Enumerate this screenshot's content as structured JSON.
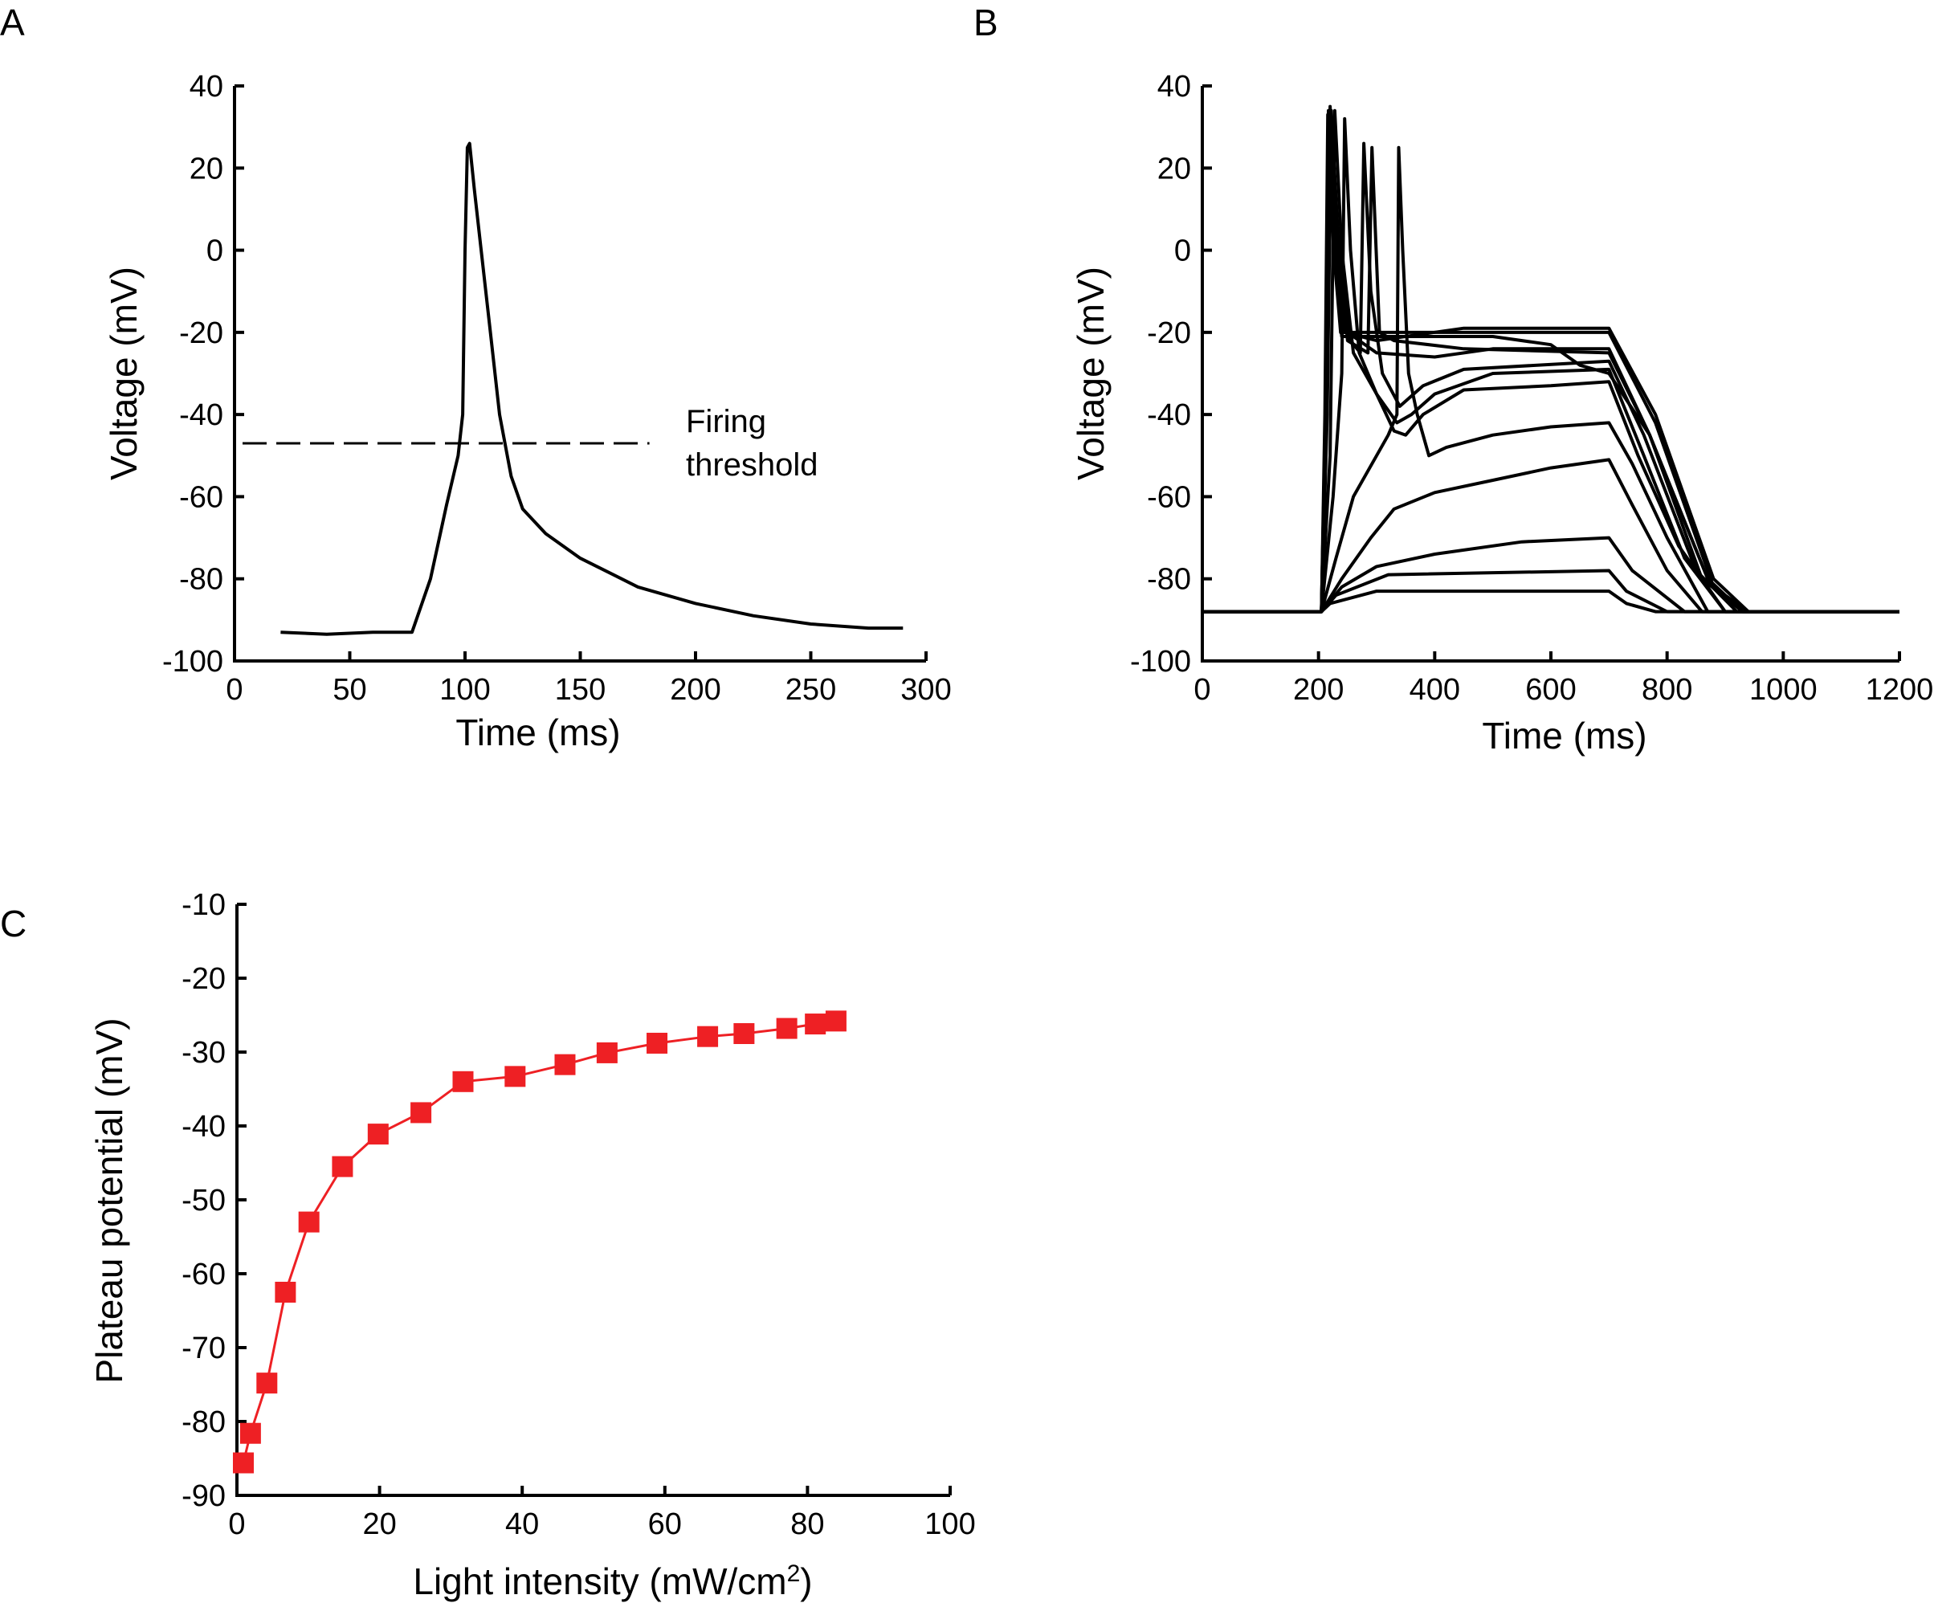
{
  "chart_data": [
    {
      "panel_label": "A",
      "type": "line",
      "xlabel": "Time (ms)",
      "ylabel": "Voltage (mV)",
      "xlim": [
        0,
        300
      ],
      "ylim": [
        -100,
        40
      ],
      "xticks": [
        0,
        50,
        100,
        150,
        200,
        250,
        300
      ],
      "yticks": [
        40,
        20,
        0,
        -20,
        -40,
        -60,
        -80,
        -100
      ],
      "grid": false,
      "annotation": {
        "text_lines": [
          "Firing",
          "threshold"
        ],
        "threshold_mV": -47,
        "line_x_range": [
          0,
          180
        ],
        "style": "dashed"
      },
      "series": [
        {
          "color": "#000000",
          "points": [
            [
              20,
              -93
            ],
            [
              40,
              -93.5
            ],
            [
              60,
              -93
            ],
            [
              77,
              -93
            ],
            [
              85,
              -80
            ],
            [
              92,
              -62
            ],
            [
              97,
              -50
            ],
            [
              99,
              -40
            ],
            [
              100,
              0
            ],
            [
              101,
              25
            ],
            [
              102,
              26
            ],
            [
              104,
              15
            ],
            [
              107,
              0
            ],
            [
              111,
              -20
            ],
            [
              115,
              -40
            ],
            [
              120,
              -55
            ],
            [
              125,
              -63
            ],
            [
              135,
              -69
            ],
            [
              150,
              -75
            ],
            [
              175,
              -82
            ],
            [
              200,
              -86
            ],
            [
              225,
              -89
            ],
            [
              250,
              -91
            ],
            [
              275,
              -92
            ],
            [
              290,
              -92
            ]
          ]
        }
      ]
    },
    {
      "panel_label": "B",
      "type": "line",
      "xlabel": "Time (ms)",
      "ylabel": "Voltage (mV)",
      "xlim": [
        0,
        1200
      ],
      "ylim": [
        -100,
        40
      ],
      "xticks": [
        0,
        200,
        400,
        600,
        800,
        1000,
        1200
      ],
      "yticks": [
        40,
        20,
        0,
        -20,
        -40,
        -60,
        -80,
        -100
      ],
      "grid": false,
      "series": [
        {
          "color": "#000000",
          "points": [
            [
              0,
              -88
            ],
            [
              205,
              -88
            ],
            [
              220,
              -86
            ],
            [
              300,
              -83
            ],
            [
              700,
              -83
            ],
            [
              730,
              -86
            ],
            [
              780,
              -88
            ],
            [
              1200,
              -88
            ]
          ]
        },
        {
          "color": "#000000",
          "points": [
            [
              0,
              -88
            ],
            [
              205,
              -88
            ],
            [
              230,
              -84
            ],
            [
              320,
              -79
            ],
            [
              700,
              -78
            ],
            [
              730,
              -83
            ],
            [
              800,
              -88
            ],
            [
              1200,
              -88
            ]
          ]
        },
        {
          "color": "#000000",
          "points": [
            [
              0,
              -88
            ],
            [
              205,
              -88
            ],
            [
              240,
              -82
            ],
            [
              300,
              -77
            ],
            [
              400,
              -74
            ],
            [
              550,
              -71
            ],
            [
              700,
              -70
            ],
            [
              740,
              -78
            ],
            [
              830,
              -88
            ],
            [
              1200,
              -88
            ]
          ]
        },
        {
          "color": "#000000",
          "points": [
            [
              0,
              -88
            ],
            [
              205,
              -88
            ],
            [
              240,
              -80
            ],
            [
              290,
              -70
            ],
            [
              330,
              -63
            ],
            [
              400,
              -59
            ],
            [
              500,
              -56
            ],
            [
              600,
              -53
            ],
            [
              700,
              -51
            ],
            [
              740,
              -62
            ],
            [
              800,
              -78
            ],
            [
              860,
              -88
            ],
            [
              1200,
              -88
            ]
          ]
        },
        {
          "color": "#000000",
          "points": [
            [
              0,
              -88
            ],
            [
              205,
              -88
            ],
            [
              230,
              -75
            ],
            [
              260,
              -60
            ],
            [
              300,
              -50
            ],
            [
              320,
              -45
            ],
            [
              335,
              -40
            ],
            [
              338,
              25
            ],
            [
              345,
              0
            ],
            [
              355,
              -30
            ],
            [
              370,
              -40
            ],
            [
              390,
              -50
            ],
            [
              420,
              -48
            ],
            [
              500,
              -45
            ],
            [
              600,
              -43
            ],
            [
              700,
              -42
            ],
            [
              740,
              -52
            ],
            [
              800,
              -70
            ],
            [
              870,
              -88
            ],
            [
              1200,
              -88
            ]
          ]
        },
        {
          "color": "#000000",
          "points": [
            [
              0,
              -88
            ],
            [
              205,
              -88
            ],
            [
              225,
              -60
            ],
            [
              240,
              -30
            ],
            [
              245,
              32
            ],
            [
              255,
              0
            ],
            [
              270,
              -25
            ],
            [
              300,
              -35
            ],
            [
              330,
              -44
            ],
            [
              350,
              -45
            ],
            [
              380,
              -40
            ],
            [
              450,
              -34
            ],
            [
              600,
              -33
            ],
            [
              700,
              -32
            ],
            [
              750,
              -50
            ],
            [
              820,
              -72
            ],
            [
              900,
              -88
            ],
            [
              1200,
              -88
            ]
          ]
        },
        {
          "color": "#000000",
          "points": [
            [
              0,
              -88
            ],
            [
              205,
              -88
            ],
            [
              220,
              -50
            ],
            [
              228,
              34
            ],
            [
              240,
              0
            ],
            [
              260,
              -25
            ],
            [
              300,
              -35
            ],
            [
              335,
              -42
            ],
            [
              360,
              -40
            ],
            [
              400,
              -35
            ],
            [
              500,
              -30
            ],
            [
              700,
              -29
            ],
            [
              760,
              -50
            ],
            [
              830,
              -75
            ],
            [
              900,
              -88
            ],
            [
              1200,
              -88
            ]
          ]
        },
        {
          "color": "#000000",
          "points": [
            [
              0,
              -88
            ],
            [
              205,
              -88
            ],
            [
              215,
              -40
            ],
            [
              222,
              34
            ],
            [
              235,
              0
            ],
            [
              255,
              -22
            ],
            [
              272,
              -25
            ],
            [
              278,
              26
            ],
            [
              290,
              -10
            ],
            [
              310,
              -30
            ],
            [
              340,
              -38
            ],
            [
              380,
              -33
            ],
            [
              450,
              -29
            ],
            [
              700,
              -27
            ],
            [
              760,
              -45
            ],
            [
              850,
              -78
            ],
            [
              920,
              -88
            ],
            [
              1200,
              -88
            ]
          ]
        },
        {
          "color": "#000000",
          "points": [
            [
              0,
              -88
            ],
            [
              205,
              -88
            ],
            [
              213,
              -40
            ],
            [
              220,
              35
            ],
            [
              232,
              0
            ],
            [
              250,
              -20
            ],
            [
              300,
              -25
            ],
            [
              400,
              -26
            ],
            [
              500,
              -24
            ],
            [
              700,
              -24
            ],
            [
              770,
              -45
            ],
            [
              860,
              -80
            ],
            [
              930,
              -88
            ],
            [
              1200,
              -88
            ]
          ]
        },
        {
          "color": "#000000",
          "points": [
            [
              0,
              -88
            ],
            [
              205,
              -88
            ],
            [
              212,
              -40
            ],
            [
              218,
              33
            ],
            [
              230,
              0
            ],
            [
              245,
              -20
            ],
            [
              300,
              -22
            ],
            [
              450,
              -19
            ],
            [
              700,
              -19
            ],
            [
              780,
              -40
            ],
            [
              880,
              -80
            ],
            [
              940,
              -88
            ],
            [
              1200,
              -88
            ]
          ]
        },
        {
          "color": "#000000",
          "points": [
            [
              0,
              -88
            ],
            [
              205,
              -88
            ],
            [
              212,
              -40
            ],
            [
              217,
              34
            ],
            [
              228,
              0
            ],
            [
              240,
              -21
            ],
            [
              300,
              -21
            ],
            [
              500,
              -21
            ],
            [
              600,
              -23
            ],
            [
              650,
              -28
            ],
            [
              700,
              -30
            ],
            [
              770,
              -45
            ],
            [
              870,
              -80
            ],
            [
              930,
              -88
            ],
            [
              1200,
              -88
            ]
          ]
        },
        {
          "color": "#000000",
          "points": [
            [
              0,
              -88
            ],
            [
              205,
              -88
            ],
            [
              211,
              -40
            ],
            [
              216,
              33
            ],
            [
              226,
              0
            ],
            [
              238,
              -20
            ],
            [
              400,
              -20
            ],
            [
              700,
              -20
            ],
            [
              780,
              -42
            ],
            [
              880,
              -82
            ],
            [
              940,
              -88
            ],
            [
              1200,
              -88
            ]
          ]
        },
        {
          "color": "#000000",
          "points": [
            [
              0,
              -88
            ],
            [
              205,
              -88
            ],
            [
              214,
              -40
            ],
            [
              221,
              33
            ],
            [
              235,
              0
            ],
            [
              250,
              -22
            ],
            [
              285,
              -25
            ],
            [
              292,
              25
            ],
            [
              305,
              -20
            ],
            [
              330,
              -22
            ],
            [
              450,
              -24
            ],
            [
              700,
              -25
            ],
            [
              770,
              -45
            ],
            [
              870,
              -80
            ],
            [
              930,
              -88
            ],
            [
              1200,
              -88
            ]
          ]
        }
      ]
    },
    {
      "panel_label": "C",
      "type": "line",
      "xlabel": "Light intensity (mW/cm",
      "xlabel_superscript": "2",
      "xlabel_suffix": ")",
      "ylabel": "Plateau potential (mV)",
      "xlim": [
        0,
        100
      ],
      "ylim": [
        -90,
        -10
      ],
      "xticks": [
        0,
        20,
        40,
        60,
        80,
        100
      ],
      "yticks": [
        -10,
        -20,
        -30,
        -40,
        -50,
        -60,
        -70,
        -80,
        -90
      ],
      "grid": false,
      "marker": "square",
      "series": [
        {
          "color": "#ee2024",
          "x": [
            0.9,
            1.9,
            4.2,
            6.8,
            10.1,
            14.8,
            19.8,
            25.8,
            31.7,
            39.0,
            46.0,
            51.9,
            58.9,
            66.0,
            71.1,
            77.1,
            81.1,
            84.0
          ],
          "y": [
            -85.6,
            -81.6,
            -74.8,
            -62.5,
            -53.0,
            -45.5,
            -41.1,
            -38.2,
            -34.0,
            -33.3,
            -31.7,
            -30.1,
            -28.8,
            -27.9,
            -27.5,
            -26.8,
            -26.2,
            -25.8
          ]
        }
      ]
    }
  ]
}
